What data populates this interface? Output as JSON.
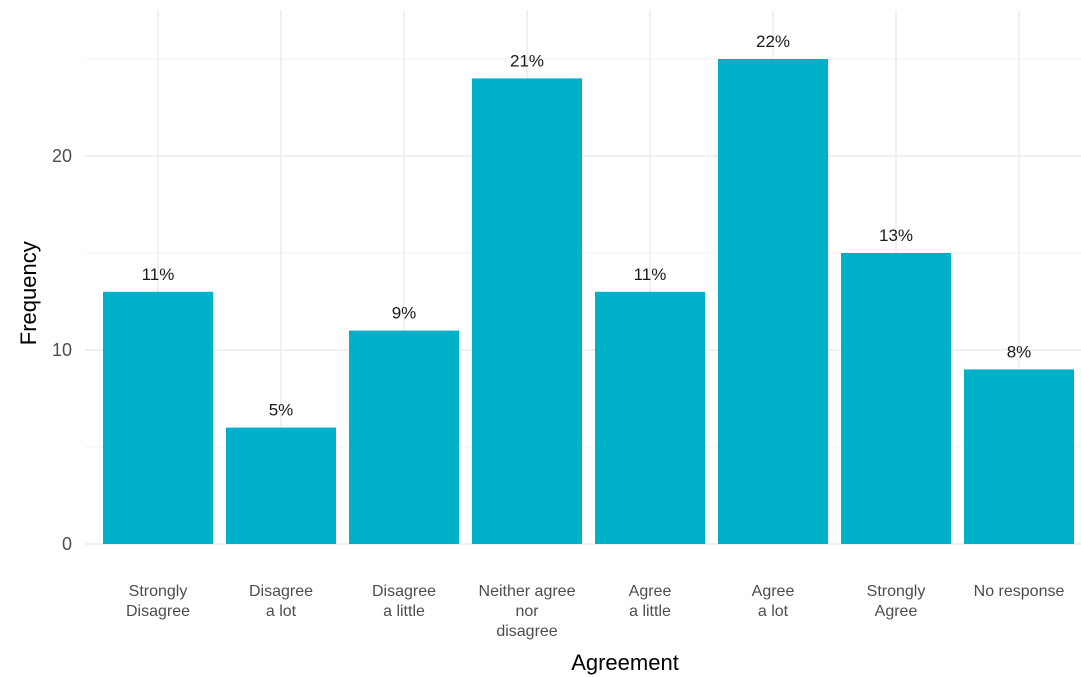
{
  "chart_data": {
    "type": "bar",
    "categories": [
      "Strongly\nDisagree",
      "Disagree\na lot",
      "Disagree\na little",
      "Neither agree\nnor\ndisagree",
      "Agree\na little",
      "Agree\na lot",
      "Strongly\nAgree",
      "No response"
    ],
    "values": [
      13,
      6,
      11,
      24,
      13,
      25,
      15,
      9
    ],
    "data_labels": [
      "11%",
      "5%",
      "9%",
      "21%",
      "11%",
      "22%",
      "13%",
      "8%"
    ],
    "xlabel": "Agreement",
    "ylabel": "Frequency",
    "ylim": [
      0,
      27.5
    ],
    "yticks": [
      0,
      10,
      20
    ],
    "grid": true,
    "bar_color": "#00b0c8"
  }
}
